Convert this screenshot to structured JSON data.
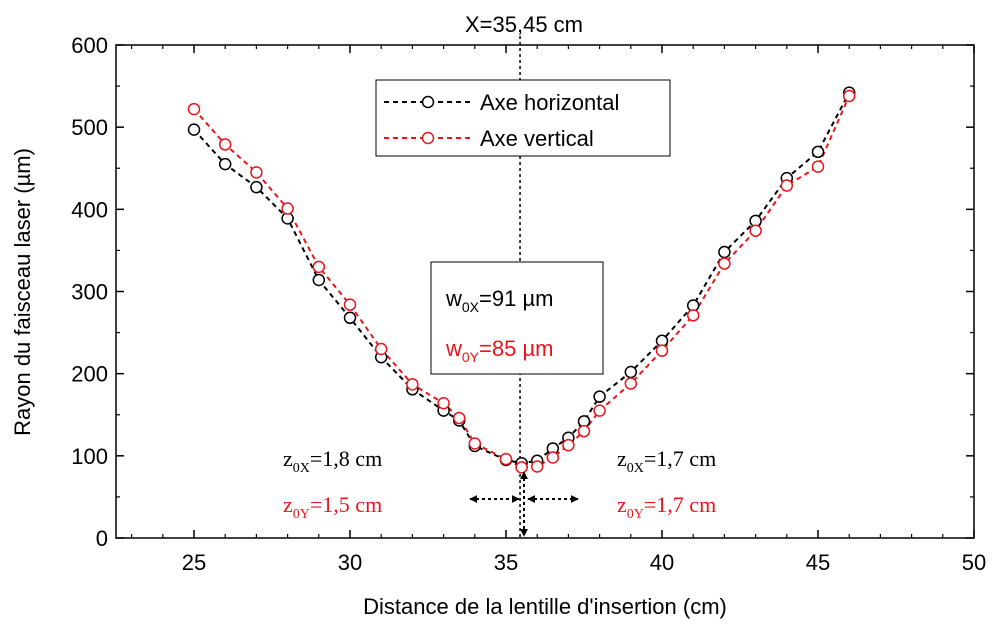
{
  "chart_data": {
    "type": "line",
    "title": "X=35,45 cm",
    "xlabel": "Distance de la lentille d'insertion (cm)",
    "ylabel": "Rayon du faisceau laser (µm)",
    "xlim": [
      22.5,
      50
    ],
    "ylim": [
      0,
      600
    ],
    "xticks": [
      25,
      30,
      35,
      40,
      45,
      50
    ],
    "yticks": [
      0,
      100,
      200,
      300,
      400,
      500,
      600
    ],
    "legend_position": "top-center",
    "grid": false,
    "series": [
      {
        "name": "Axe horizontal",
        "color": "#000000",
        "x": [
          25,
          26,
          27,
          28,
          29,
          30,
          31,
          32,
          33,
          33.5,
          34,
          35,
          35.5,
          36,
          36.5,
          37,
          37.5,
          38,
          39,
          40,
          41,
          42,
          43,
          44,
          45,
          46
        ],
        "y": [
          497,
          455,
          427,
          389,
          314,
          268,
          220,
          181,
          155,
          143,
          112,
          95,
          91,
          94,
          109,
          122,
          142,
          172,
          202,
          240,
          283,
          348,
          386,
          438,
          470,
          542
        ]
      },
      {
        "name": "Axe vertical",
        "color": "#e8161b",
        "x": [
          25,
          26,
          27,
          28,
          29,
          30,
          31,
          32,
          33,
          33.5,
          34,
          35,
          35.5,
          36,
          36.5,
          37,
          37.5,
          38,
          39,
          40,
          41,
          42,
          43,
          44,
          45,
          46
        ],
        "y": [
          522,
          479,
          445,
          401,
          330,
          284,
          230,
          187,
          164,
          146,
          115,
          96,
          86,
          87,
          98,
          113,
          130,
          155,
          188,
          228,
          271,
          334,
          374,
          429,
          452,
          538
        ]
      }
    ],
    "vline_x": 35.45,
    "annotations": {
      "w0x": {
        "base": "w",
        "sub": "0X",
        "rest": "=91 µm"
      },
      "w0y": {
        "base": "w",
        "sub": "0Y",
        "rest": "=85 µm"
      },
      "z0x_left": {
        "base": "z",
        "sub": "0X",
        "rest": "=1,8 cm"
      },
      "z0y_left": {
        "base": "z",
        "sub": "0Y",
        "rest": "=1,5 cm"
      },
      "z0x_right": {
        "base": "z",
        "sub": "0X",
        "rest": "=1,7 cm"
      },
      "z0y_right": {
        "base": "z",
        "sub": "0Y",
        "rest": "=1,7 cm"
      }
    }
  }
}
